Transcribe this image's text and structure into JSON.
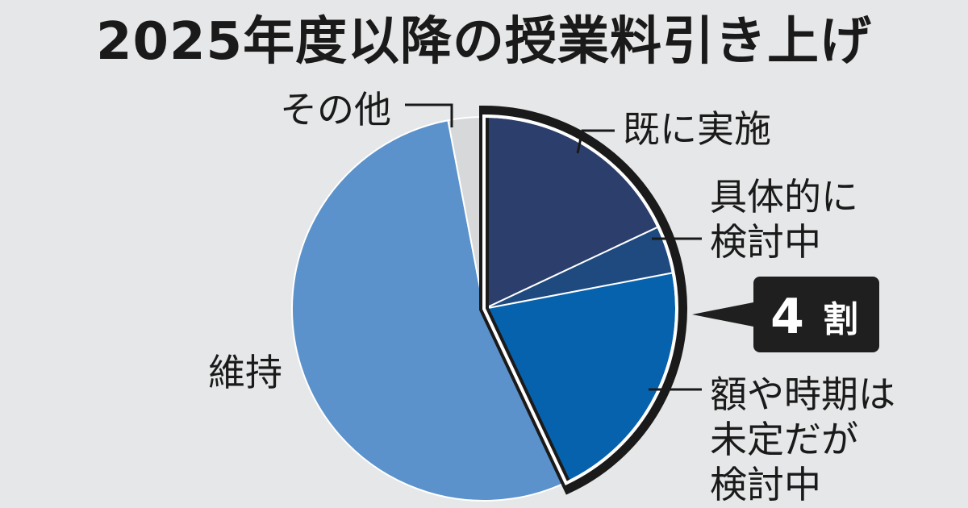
{
  "title": "2025年度以降の授業料引き上げ",
  "colors": {
    "background": "#e6e7e8",
    "outline": "#1a1a1a",
    "callout_bg": "#1f1f1f"
  },
  "chart_data": {
    "type": "pie",
    "title": "2025年度以降の授業料引き上げ",
    "slices": [
      {
        "label": "既に実施",
        "lines": [
          "既に実施"
        ],
        "value": 18,
        "color": "#2c3e6b"
      },
      {
        "label": "具体的に検討中",
        "lines": [
          "具体的に",
          "検討中"
        ],
        "value": 4,
        "color": "#1f4a80"
      },
      {
        "label": "額や時期は未定だが検討中",
        "lines": [
          "額や時期は",
          "未定だが",
          "検討中"
        ],
        "value": 21,
        "color": "#0762ad"
      },
      {
        "label": "維持",
        "lines": [
          "維持"
        ],
        "value": 54,
        "color": "#5b92cb"
      },
      {
        "label": "その他",
        "lines": [
          "その他"
        ],
        "value": 3,
        "color": "#d7d8da"
      }
    ],
    "highlight": {
      "slices": [
        "既に実施",
        "具体的に検討中",
        "額や時期は未定だが検討中"
      ],
      "number": "4",
      "text": "割"
    }
  }
}
